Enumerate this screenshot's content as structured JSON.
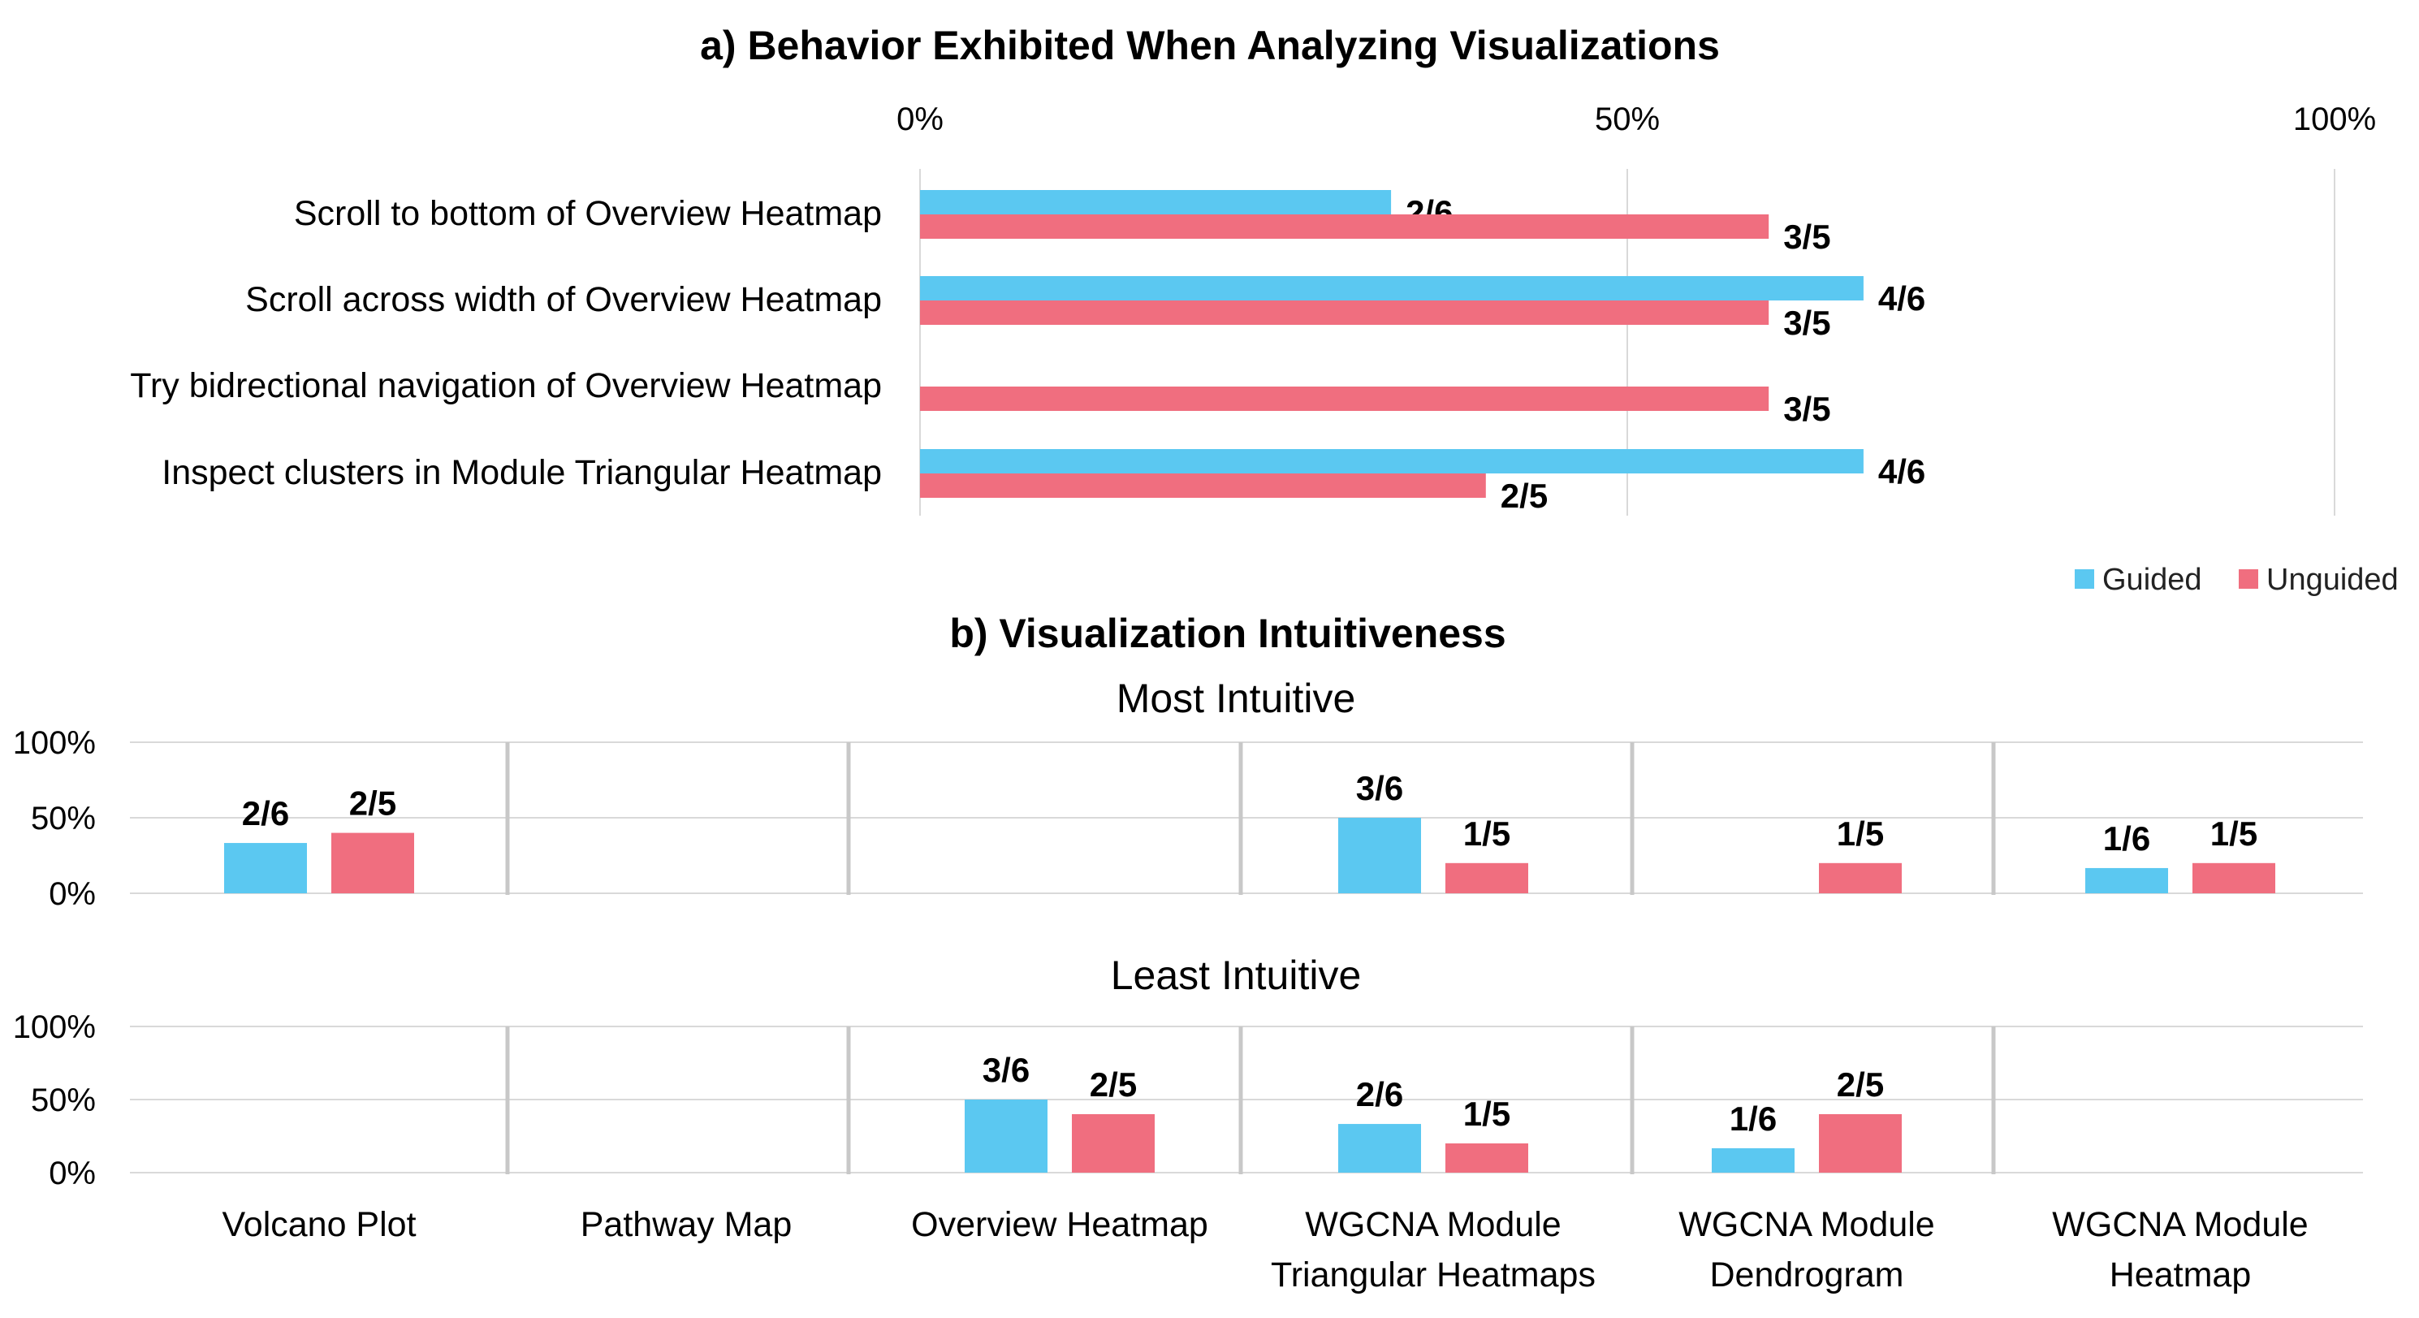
{
  "chart_data": [
    {
      "id": "a",
      "type": "bar",
      "orientation": "horizontal",
      "title": "a) Behavior Exhibited When Analyzing Visualizations",
      "xlim": [
        0,
        100
      ],
      "xticks": [
        "0%",
        "50%",
        "100%"
      ],
      "grid": true,
      "legend": {
        "position": "bottom-right",
        "entries": [
          "Guided",
          "Unguided"
        ]
      },
      "categories": [
        "Scroll to bottom of Overview Heatmap",
        "Scroll  across width of Overview Heatmap",
        "Try bidrectional navigation of Overview Heatmap",
        "Inspect clusters in  Module Triangular Heatmap"
      ],
      "series": [
        {
          "name": "Guided",
          "color": "#5BC8F1",
          "values": [
            33.3,
            66.7,
            0,
            66.7
          ],
          "labels": [
            "2/6",
            "4/6",
            "",
            "4/6"
          ]
        },
        {
          "name": "Unguided",
          "color": "#F06E7F",
          "values": [
            60,
            60,
            60,
            40
          ],
          "labels": [
            "3/5",
            "3/5",
            "3/5",
            "2/5"
          ]
        }
      ]
    },
    {
      "id": "b",
      "type": "bar",
      "title": "b) Visualization Intuitiveness",
      "categories": [
        [
          "Volcano Plot"
        ],
        [
          "Pathway Map"
        ],
        [
          "Overview Heatmap"
        ],
        [
          "WGCNA Module",
          "Triangular Heatmaps"
        ],
        [
          "WGCNA Module",
          "Dendrogram"
        ],
        [
          "WGCNA Module",
          "Heatmap"
        ]
      ],
      "ylim": [
        0,
        100
      ],
      "yticks": [
        "100%",
        "50%",
        "0%"
      ],
      "panels": [
        {
          "subtitle": "Most Intuitive",
          "series": [
            {
              "name": "Guided",
              "color": "#5BC8F1",
              "values": [
                33.3,
                0,
                0,
                50,
                0,
                16.7
              ],
              "labels": [
                "2/6",
                "",
                "",
                "3/6",
                "",
                "1/6"
              ]
            },
            {
              "name": "Unguided",
              "color": "#F06E7F",
              "values": [
                40,
                0,
                0,
                20,
                20,
                20
              ],
              "labels": [
                "2/5",
                "",
                "",
                "1/5",
                "1/5",
                "1/5"
              ]
            }
          ]
        },
        {
          "subtitle": "Least Intuitive",
          "series": [
            {
              "name": "Guided",
              "color": "#5BC8F1",
              "values": [
                0,
                0,
                50,
                33.3,
                16.7,
                0
              ],
              "labels": [
                "",
                "",
                "3/6",
                "2/6",
                "1/6",
                ""
              ]
            },
            {
              "name": "Unguided",
              "color": "#F06E7F",
              "values": [
                0,
                0,
                40,
                20,
                40,
                0
              ],
              "labels": [
                "",
                "",
                "2/5",
                "1/5",
                "2/5",
                ""
              ]
            }
          ]
        }
      ]
    }
  ]
}
